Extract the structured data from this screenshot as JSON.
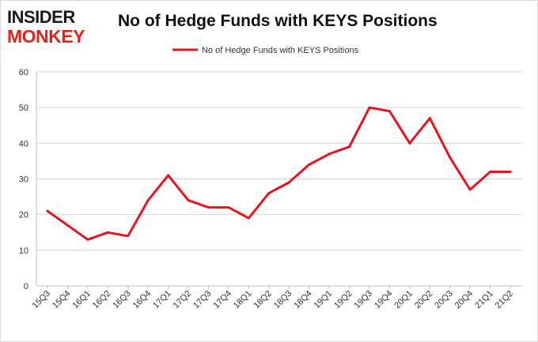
{
  "logo": {
    "line1": "INSIDER",
    "line2": "MONKEY",
    "color_dark": "#1a1a1a",
    "color_accent": "#e0241b"
  },
  "chart_data": {
    "type": "line",
    "title": "No of Hedge Funds with KEYS Positions",
    "xlabel": "",
    "ylabel": "",
    "categories": [
      "15Q3",
      "15Q4",
      "16Q1",
      "16Q2",
      "16Q3",
      "16Q4",
      "17Q1",
      "17Q2",
      "17Q3",
      "17Q4",
      "18Q1",
      "18Q2",
      "18Q3",
      "18Q4",
      "19Q1",
      "19Q2",
      "19Q3",
      "19Q4",
      "20Q1",
      "20Q2",
      "20Q3",
      "20Q4",
      "21Q1",
      "21Q2"
    ],
    "series": [
      {
        "name": "No of Hedge Funds with KEYS Positions",
        "color": "#e8141b",
        "values": [
          21,
          17,
          13,
          15,
          14,
          24,
          31,
          24,
          22,
          22,
          19,
          26,
          29,
          34,
          37,
          39,
          50,
          49,
          40,
          47,
          36,
          27,
          32,
          32
        ]
      }
    ],
    "ylim": [
      0,
      60
    ],
    "yticks": [
      0,
      10,
      20,
      30,
      40,
      50,
      60
    ],
    "grid": true,
    "legend": "top-center"
  }
}
